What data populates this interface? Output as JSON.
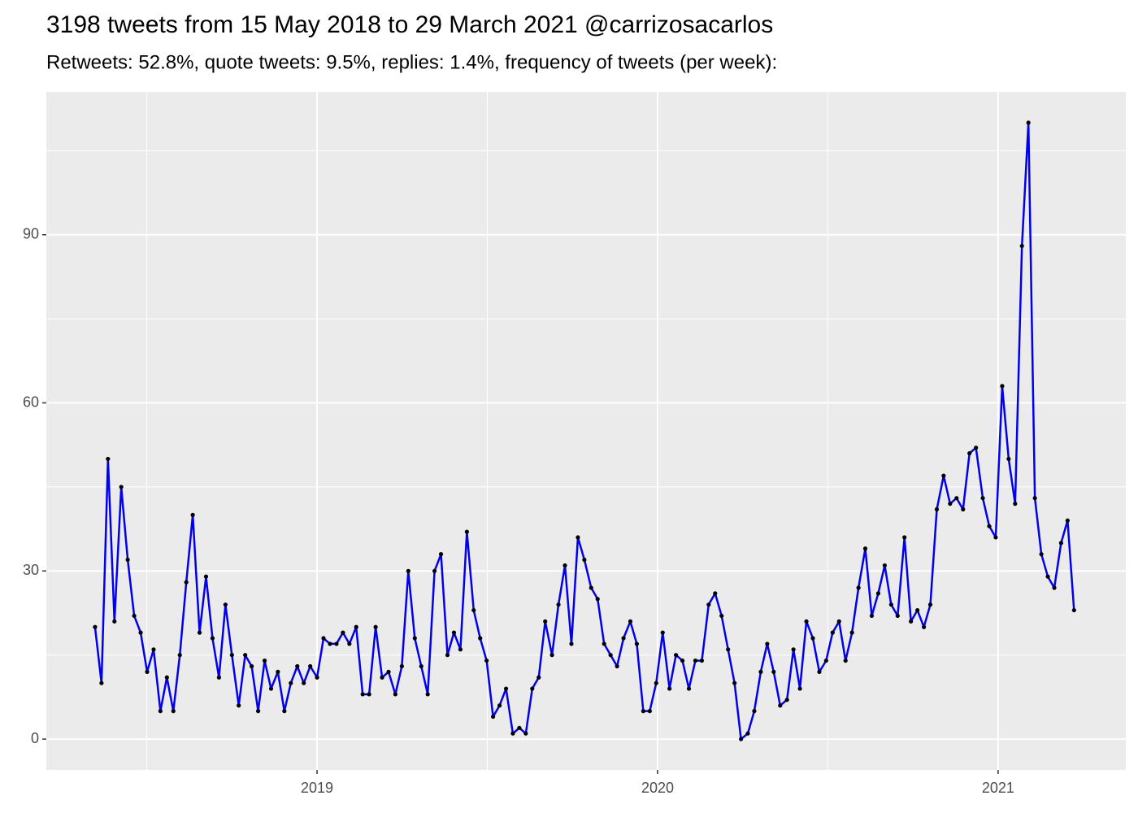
{
  "chart_data": {
    "type": "line",
    "title": "3198 tweets from 15 May 2018 to 29 March 2021 @carrizosacarlos",
    "subtitle": "Retweets: 52.8%, quote tweets: 9.5%, replies: 1.4%, frequency of tweets (per week):",
    "x": [
      2018.348,
      2018.367,
      2018.386,
      2018.405,
      2018.425,
      2018.444,
      2018.463,
      2018.482,
      2018.501,
      2018.52,
      2018.54,
      2018.559,
      2018.578,
      2018.597,
      2018.616,
      2018.635,
      2018.655,
      2018.674,
      2018.693,
      2018.712,
      2018.731,
      2018.75,
      2018.77,
      2018.789,
      2018.808,
      2018.827,
      2018.846,
      2018.865,
      2018.885,
      2018.904,
      2018.923,
      2018.942,
      2018.961,
      2018.98,
      2019.0,
      2019.019,
      2019.038,
      2019.057,
      2019.076,
      2019.095,
      2019.115,
      2019.134,
      2019.153,
      2019.172,
      2019.191,
      2019.21,
      2019.23,
      2019.249,
      2019.268,
      2019.287,
      2019.306,
      2019.325,
      2019.345,
      2019.364,
      2019.383,
      2019.402,
      2019.421,
      2019.44,
      2019.46,
      2019.479,
      2019.498,
      2019.517,
      2019.536,
      2019.555,
      2019.575,
      2019.594,
      2019.613,
      2019.632,
      2019.651,
      2019.67,
      2019.69,
      2019.709,
      2019.728,
      2019.747,
      2019.766,
      2019.785,
      2019.805,
      2019.824,
      2019.843,
      2019.862,
      2019.881,
      2019.9,
      2019.92,
      2019.939,
      2019.958,
      2019.977,
      2019.996,
      2020.015,
      2020.035,
      2020.054,
      2020.073,
      2020.092,
      2020.111,
      2020.13,
      2020.15,
      2020.169,
      2020.188,
      2020.207,
      2020.226,
      2020.245,
      2020.265,
      2020.284,
      2020.303,
      2020.322,
      2020.341,
      2020.36,
      2020.38,
      2020.399,
      2020.418,
      2020.437,
      2020.456,
      2020.475,
      2020.495,
      2020.514,
      2020.533,
      2020.552,
      2020.571,
      2020.59,
      2020.61,
      2020.629,
      2020.648,
      2020.667,
      2020.686,
      2020.705,
      2020.725,
      2020.744,
      2020.763,
      2020.782,
      2020.801,
      2020.82,
      2020.84,
      2020.859,
      2020.878,
      2020.897,
      2020.916,
      2020.935,
      2020.955,
      2020.974,
      2020.993,
      2021.012,
      2021.031,
      2021.05,
      2021.07,
      2021.089,
      2021.108,
      2021.127,
      2021.146,
      2021.165,
      2021.185,
      2021.204,
      2021.223
    ],
    "series": [
      {
        "name": "tweets per week",
        "color": "#0000ee",
        "point_color": "#000000",
        "values": [
          20,
          10,
          50,
          21,
          45,
          32,
          22,
          19,
          12,
          16,
          5,
          11,
          5,
          15,
          28,
          40,
          19,
          29,
          18,
          11,
          24,
          15,
          6,
          15,
          13,
          5,
          14,
          9,
          12,
          5,
          10,
          13,
          10,
          13,
          11,
          18,
          17,
          17,
          19,
          17,
          20,
          8,
          8,
          20,
          11,
          12,
          8,
          13,
          30,
          18,
          13,
          8,
          30,
          33,
          15,
          19,
          16,
          37,
          23,
          18,
          14,
          4,
          6,
          9,
          1,
          2,
          1,
          9,
          11,
          21,
          15,
          24,
          31,
          17,
          36,
          32,
          27,
          25,
          17,
          15,
          13,
          18,
          21,
          17,
          5,
          5,
          10,
          19,
          9,
          15,
          14,
          9,
          14,
          14,
          24,
          26,
          22,
          16,
          10,
          0,
          1,
          5,
          12,
          17,
          12,
          6,
          7,
          16,
          9,
          21,
          18,
          12,
          14,
          19,
          21,
          14,
          19,
          27,
          34,
          22,
          26,
          31,
          24,
          22,
          36,
          21,
          23,
          20,
          24,
          41,
          47,
          42,
          43,
          41,
          51,
          52,
          43,
          38,
          36,
          63,
          50,
          42,
          88,
          110,
          43,
          33,
          29,
          27,
          35,
          39,
          23
        ]
      }
    ],
    "xlim": [
      2018.205,
      2021.375
    ],
    "xticks": [
      2019,
      2020,
      2021
    ],
    "x_minor_ticks": [
      2018.5,
      2019.5,
      2020.5
    ],
    "ylim": [
      -5.5,
      115.5
    ],
    "yticks": [
      0,
      30,
      60,
      90
    ],
    "y_minor_ticks": [
      15,
      45,
      75,
      105
    ],
    "grid": true
  }
}
